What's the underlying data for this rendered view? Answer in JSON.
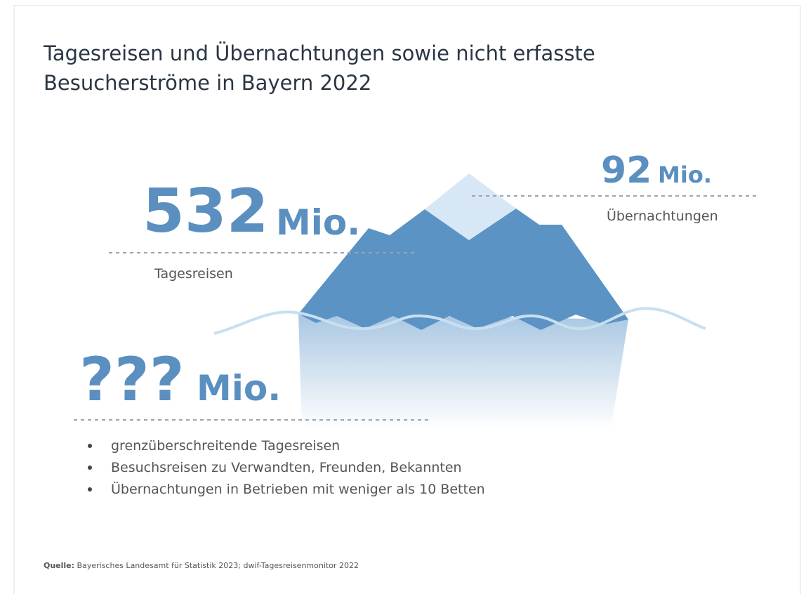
{
  "title": {
    "line1": "Tagesreisen und Übernachtungen sowie nicht erfasste",
    "line2": "Besucherströme in Bayern 2022"
  },
  "day_trips": {
    "value": "532",
    "unit": "Mio.",
    "label": "Tagesreisen"
  },
  "overnight": {
    "value": "92",
    "unit": "Mio.",
    "label": "Übernachtungen"
  },
  "unrecorded": {
    "value": "???",
    "unit": "Mio.",
    "items": [
      "grenzüberschreitende Tagesreisen",
      "Besuchsreisen zu Verwandten, Freunden, Bekannten",
      "Übernachtungen in Betrieben mit weniger als 10 Betten"
    ]
  },
  "source": {
    "label": "Quelle:",
    "text": "Bayerisches Landesamt für Statistik 2023; dwif-Tagesreisenmonitor 2022"
  }
}
